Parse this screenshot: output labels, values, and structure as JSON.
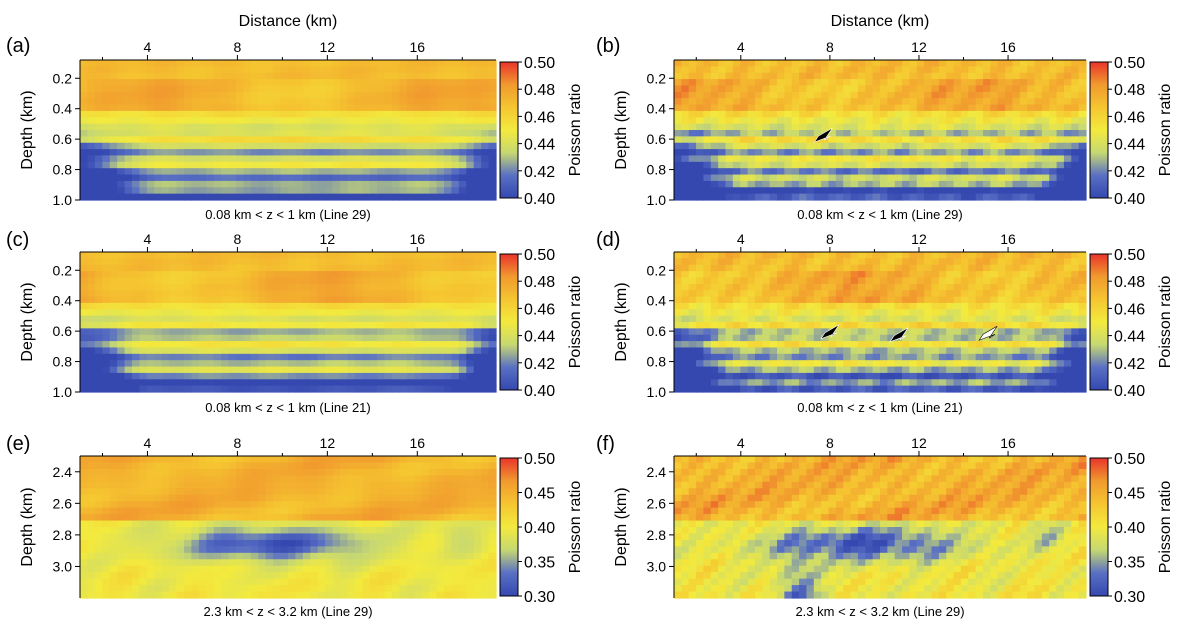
{
  "colorbar_stops": [
    "#3448b0",
    "#5a70c4",
    "#c6d872",
    "#f3ea3e",
    "#f5c530",
    "#f19a2e",
    "#e8342b"
  ],
  "chart_data": [
    {
      "type": "heatmap",
      "panel": "(a)",
      "xlabel": "Distance (km)",
      "ylabel": "Depth (km)",
      "xlim": [
        1,
        19.5
      ],
      "ylim": [
        0.08,
        1.0
      ],
      "xticks": [
        "4",
        "8",
        "12",
        "16"
      ],
      "yticks": [
        "0.2",
        "0.4",
        "0.6",
        "0.8",
        "1.0"
      ],
      "caption": "0.08 km < z < 1 km (Line 29)",
      "colorbar": {
        "label": "Poisson ratio",
        "ticks": [
          "0.50",
          "0.48",
          "0.46",
          "0.44",
          "0.42",
          "0.40"
        ],
        "range": [
          0.4,
          0.5
        ]
      },
      "arrows": []
    },
    {
      "type": "heatmap",
      "panel": "(b)",
      "xlabel": "Distance (km)",
      "ylabel": "Depth (km)",
      "xlim": [
        1,
        19.5
      ],
      "ylim": [
        0.08,
        1.0
      ],
      "xticks": [
        "4",
        "8",
        "12",
        "16"
      ],
      "yticks": [
        "0.2",
        "0.4",
        "0.6",
        "0.8",
        "1.0"
      ],
      "caption": "0.08 km < z < 1 km (Line 29)",
      "colorbar": {
        "label": "Poisson ratio",
        "ticks": [
          "0.50",
          "0.48",
          "0.46",
          "0.44",
          "0.42",
          "0.40"
        ],
        "range": [
          0.4,
          0.5
        ]
      },
      "arrows": [
        {
          "x": 7.3,
          "y": 0.62,
          "color": "black"
        }
      ]
    },
    {
      "type": "heatmap",
      "panel": "(c)",
      "xlabel": "",
      "ylabel": "Depth (km)",
      "xlim": [
        1,
        19.5
      ],
      "ylim": [
        0.08,
        1.0
      ],
      "xticks": [
        "4",
        "8",
        "12",
        "16"
      ],
      "yticks": [
        "0.2",
        "0.4",
        "0.6",
        "0.8",
        "1.0"
      ],
      "caption": "0.08 km < z < 1 km (Line 21)",
      "colorbar": {
        "label": "Poisson ratio",
        "ticks": [
          "0.50",
          "0.48",
          "0.46",
          "0.44",
          "0.42",
          "0.40"
        ],
        "range": [
          0.4,
          0.5
        ]
      },
      "arrows": []
    },
    {
      "type": "heatmap",
      "panel": "(d)",
      "xlabel": "",
      "ylabel": "Depth (km)",
      "xlim": [
        1,
        19.5
      ],
      "ylim": [
        0.08,
        1.0
      ],
      "xticks": [
        "4",
        "8",
        "12",
        "16"
      ],
      "yticks": [
        "0.2",
        "0.4",
        "0.6",
        "0.8",
        "1.0"
      ],
      "caption": "0.08 km < z < 1 km (Line 21)",
      "colorbar": {
        "label": "Poisson ratio",
        "ticks": [
          "0.50",
          "0.48",
          "0.46",
          "0.44",
          "0.42",
          "0.40"
        ],
        "range": [
          0.4,
          0.5
        ]
      },
      "arrows": [
        {
          "x": 7.6,
          "y": 0.65,
          "color": "black"
        },
        {
          "x": 10.7,
          "y": 0.67,
          "color": "black"
        },
        {
          "x": 14.7,
          "y": 0.66,
          "color": "white"
        }
      ]
    },
    {
      "type": "heatmap",
      "panel": "(e)",
      "xlabel": "",
      "ylabel": "Depth (km)",
      "xlim": [
        1,
        19.5
      ],
      "ylim": [
        2.3,
        3.2
      ],
      "xticks": [
        "4",
        "8",
        "12",
        "16"
      ],
      "yticks": [
        "2.4",
        "2.6",
        "2.8",
        "3.0"
      ],
      "caption": "2.3 km < z < 3.2 km (Line 29)",
      "colorbar": {
        "label": "Poisson ratio",
        "ticks": [
          "0.50",
          "0.45",
          "0.40",
          "0.35",
          "0.30"
        ],
        "range": [
          0.3,
          0.5
        ]
      },
      "arrows": []
    },
    {
      "type": "heatmap",
      "panel": "(f)",
      "xlabel": "",
      "ylabel": "Depth (km)",
      "xlim": [
        1,
        19.5
      ],
      "ylim": [
        2.3,
        3.2
      ],
      "xticks": [
        "4",
        "8",
        "12",
        "16"
      ],
      "yticks": [
        "2.4",
        "2.6",
        "2.8",
        "3.0"
      ],
      "caption": "2.3 km < z < 3.2 km (Line 29)",
      "colorbar": {
        "label": "Poisson ratio",
        "ticks": [
          "0.50",
          "0.45",
          "0.40",
          "0.35",
          "0.30"
        ],
        "range": [
          0.3,
          0.5
        ]
      },
      "arrows": []
    }
  ]
}
